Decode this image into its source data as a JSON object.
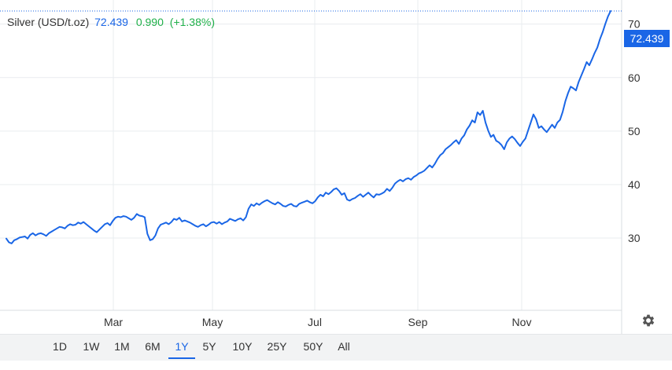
{
  "legend": {
    "name": "Silver (USD/t.oz)",
    "price": "72.439",
    "change": "0.990",
    "change_pct": "(+1.38%)"
  },
  "price_tag": "72.439",
  "colors": {
    "line": "#1a66e6",
    "positive": "#20b04a",
    "grid": "#e9ecef"
  },
  "settings_icon": "gear-icon",
  "ranges": [
    "1D",
    "1W",
    "1M",
    "6M",
    "1Y",
    "5Y",
    "10Y",
    "25Y",
    "50Y",
    "All"
  ],
  "active_range": "1Y",
  "chart_data": {
    "type": "line",
    "title": "",
    "xlabel": "",
    "ylabel": "",
    "x_ticks": [
      "Mar",
      "May",
      "Jul",
      "Sep",
      "Nov"
    ],
    "y_ticks": [
      30,
      40,
      50,
      60,
      70
    ],
    "ylim": [
      16.5,
      74.5
    ],
    "grid": true,
    "series": [
      {
        "name": "Silver (USD/t.oz)",
        "values": [
          29.9,
          29.2,
          29.0,
          29.6,
          29.8,
          30.1,
          30.2,
          30.3,
          29.9,
          30.6,
          30.9,
          30.5,
          30.8,
          30.9,
          30.7,
          30.4,
          30.9,
          31.2,
          31.5,
          31.8,
          32.1,
          32.0,
          31.8,
          32.3,
          32.6,
          32.4,
          32.5,
          32.9,
          32.7,
          33.0,
          32.6,
          32.2,
          31.8,
          31.4,
          31.1,
          31.6,
          32.1,
          32.6,
          32.8,
          32.4,
          33.2,
          33.8,
          34.0,
          33.9,
          34.1,
          34.0,
          33.7,
          33.4,
          33.8,
          34.5,
          34.2,
          34.1,
          33.9,
          30.8,
          29.6,
          29.8,
          30.5,
          31.8,
          32.5,
          32.7,
          32.9,
          32.6,
          33.0,
          33.6,
          33.4,
          33.8,
          33.1,
          33.3,
          33.1,
          32.9,
          32.6,
          32.3,
          32.1,
          32.4,
          32.6,
          32.2,
          32.5,
          32.9,
          33.0,
          32.7,
          33.0,
          32.6,
          32.9,
          33.1,
          33.6,
          33.4,
          33.2,
          33.5,
          33.7,
          33.3,
          33.9,
          35.5,
          36.3,
          36.0,
          36.5,
          36.2,
          36.6,
          36.9,
          37.1,
          36.8,
          36.5,
          36.3,
          36.7,
          36.4,
          36.0,
          35.9,
          36.2,
          36.4,
          36.0,
          35.9,
          36.4,
          36.6,
          36.8,
          37.0,
          36.7,
          36.5,
          36.9,
          37.6,
          38.1,
          37.8,
          38.5,
          38.2,
          38.6,
          39.1,
          39.3,
          38.8,
          38.1,
          38.4,
          37.2,
          37.0,
          37.3,
          37.5,
          37.9,
          38.2,
          37.7,
          38.1,
          38.5,
          38.0,
          37.6,
          38.2,
          38.1,
          38.3,
          38.6,
          39.2,
          38.8,
          39.4,
          40.2,
          40.6,
          40.9,
          40.6,
          41.0,
          41.2,
          40.9,
          41.4,
          41.7,
          42.1,
          42.3,
          42.6,
          43.1,
          43.6,
          43.2,
          43.9,
          44.8,
          45.5,
          45.9,
          46.6,
          47.0,
          47.4,
          47.9,
          48.3,
          47.6,
          48.6,
          49.2,
          50.3,
          51.0,
          52.0,
          51.6,
          53.5,
          53.0,
          53.8,
          51.6,
          50.1,
          48.9,
          49.3,
          48.2,
          47.9,
          47.4,
          46.6,
          47.9,
          48.6,
          49.0,
          48.5,
          47.8,
          47.2,
          48.0,
          48.6,
          50.1,
          51.6,
          53.1,
          52.2,
          50.6,
          50.9,
          50.3,
          49.8,
          50.5,
          51.2,
          50.6,
          51.6,
          52.1,
          53.6,
          55.6,
          57.1,
          58.3,
          58.0,
          57.6,
          59.2,
          60.4,
          61.6,
          62.9,
          62.3,
          63.4,
          64.6,
          65.6,
          67.2,
          68.5,
          70.0,
          71.4,
          72.439
        ]
      }
    ]
  }
}
